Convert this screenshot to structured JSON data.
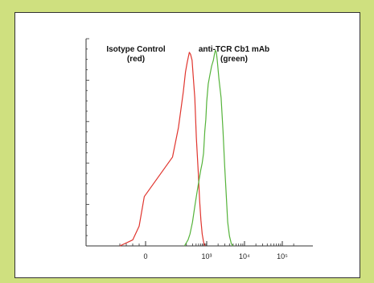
{
  "chart_data": {
    "type": "line",
    "title": "",
    "xlabel": "",
    "ylabel": "",
    "x_scale": "biexponential",
    "x_tick_labels": [
      "0",
      "10³",
      "10⁴",
      "10⁵"
    ],
    "annotations": [
      {
        "lines": [
          "Isotype Control",
          "(red)"
        ]
      },
      {
        "lines": [
          "anti-TCR Cb1 mAb",
          "(green)"
        ]
      }
    ],
    "series": [
      {
        "name": "Isotype Control",
        "color": "#e0352e",
        "points": [
          [
            -200,
            0
          ],
          [
            -100,
            3
          ],
          [
            -50,
            10
          ],
          [
            -10,
            25
          ],
          [
            20,
            45
          ],
          [
            40,
            60
          ],
          [
            70,
            78
          ],
          [
            90,
            88
          ],
          [
            110,
            93
          ],
          [
            140,
            98
          ],
          [
            160,
            97
          ],
          [
            190,
            94
          ],
          [
            220,
            85
          ],
          [
            260,
            75
          ],
          [
            310,
            55
          ],
          [
            380,
            38
          ],
          [
            450,
            23
          ],
          [
            520,
            13
          ],
          [
            600,
            6
          ],
          [
            700,
            2
          ],
          [
            800,
            0
          ]
        ]
      },
      {
        "name": "anti-TCR Cb1 mAb",
        "color": "#55b33a",
        "points": [
          [
            80,
            0
          ],
          [
            120,
            3
          ],
          [
            150,
            6
          ],
          [
            200,
            12
          ],
          [
            260,
            20
          ],
          [
            320,
            26
          ],
          [
            400,
            32
          ],
          [
            500,
            38
          ],
          [
            600,
            42
          ],
          [
            700,
            47
          ],
          [
            800,
            58
          ],
          [
            900,
            64
          ],
          [
            1000,
            73
          ],
          [
            1100,
            82
          ],
          [
            1200,
            86
          ],
          [
            1350,
            91
          ],
          [
            1500,
            94
          ],
          [
            1600,
            97
          ],
          [
            1700,
            99
          ],
          [
            1800,
            98
          ],
          [
            1900,
            94
          ],
          [
            2100,
            85
          ],
          [
            2400,
            75
          ],
          [
            2700,
            58
          ],
          [
            3000,
            40
          ],
          [
            3300,
            25
          ],
          [
            3600,
            12
          ],
          [
            4000,
            5
          ],
          [
            4500,
            1
          ],
          [
            5000,
            0
          ]
        ]
      }
    ],
    "xlim": [
      -300,
      100000
    ],
    "ylim": [
      0,
      100
    ],
    "grid": false,
    "legend": "none"
  },
  "colors": {
    "background": "#cfe07f",
    "panel": "#ffffff"
  }
}
